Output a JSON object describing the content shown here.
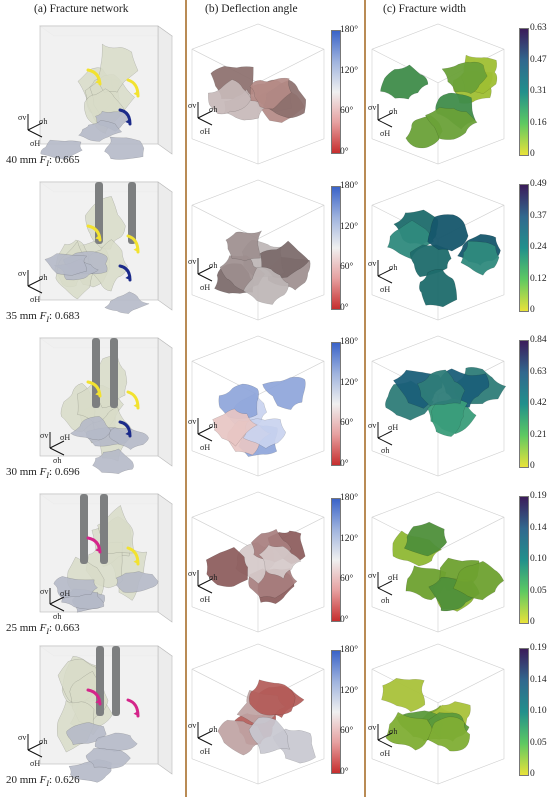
{
  "headers": {
    "network": "(a) Fracture network",
    "deflection": "(b) Deflection angle",
    "width": "(c) Fracture width"
  },
  "cases": [
    {
      "size": "40 mm",
      "fi_value": ": 0.665",
      "width_ticks": [
        "0.63",
        "0.47",
        "0.31",
        "0.16",
        "0"
      ]
    },
    {
      "size": "35 mm",
      "fi_value": ": 0.683",
      "width_ticks": [
        "0.49",
        "0.37",
        "0.24",
        "0.12",
        "0"
      ]
    },
    {
      "size": "30 mm",
      "fi_value": ": 0.696",
      "width_ticks": [
        "0.84",
        "0.63",
        "0.42",
        "0.21",
        "0"
      ]
    },
    {
      "size": "25 mm",
      "fi_value": ": 0.663",
      "width_ticks": [
        "0.19",
        "0.14",
        "0.10",
        "0.05",
        "0"
      ]
    },
    {
      "size": "20 mm",
      "fi_value": ": 0.626",
      "width_ticks": [
        "0.19",
        "0.14",
        "0.10",
        "0.05",
        "0"
      ]
    }
  ],
  "fi_symbol": "F",
  "fi_sub": "I",
  "angle_ticks": [
    "180°",
    "120°",
    "60°",
    "0°"
  ],
  "stress_axes": {
    "v": "σv",
    "h": "σh",
    "H": "σH"
  },
  "colors": {
    "divider": "#b98b55",
    "fracture_network": "#d8dcc8",
    "fracture_gray": "#b5b9c8",
    "wellbore": "#7d7f80",
    "arrow_yellow": "#f2e230",
    "arrow_blue": "#1b2a8a",
    "arrow_magenta": "#d4258a",
    "angle_low": "#c62e2e",
    "angle_mid": "#f0f0f0",
    "angle_high": "#3a63c8",
    "width_low": "#e8e23a",
    "width_mid": "#21908c",
    "width_high": "#3b1c5a"
  }
}
